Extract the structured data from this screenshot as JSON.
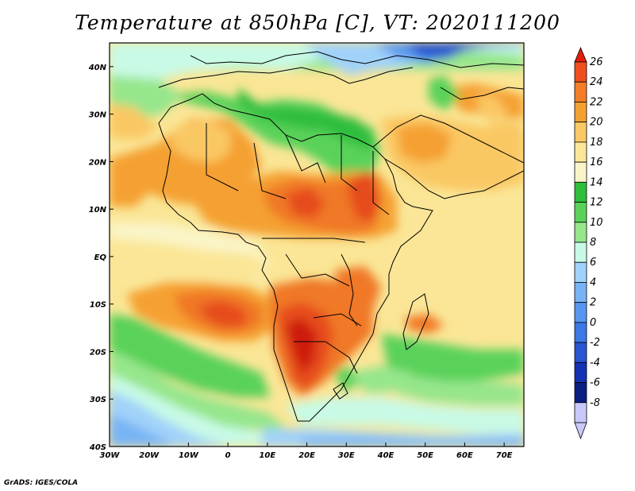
{
  "title": "Temperature at 850hPa [C], VT: 2020111200",
  "credit": "GrADS: IGES/COLA",
  "map": {
    "projection": "lat-lon",
    "lon_range": [
      -30,
      75
    ],
    "lat_range": [
      -40,
      45
    ],
    "lon_ticks": [
      "30W",
      "20W",
      "10W",
      "0",
      "10E",
      "20E",
      "30E",
      "40E",
      "50E",
      "60E",
      "70E"
    ],
    "lat_ticks": [
      "40N",
      "30N",
      "20N",
      "10N",
      "EQ",
      "10S",
      "20S",
      "30S",
      "40S"
    ],
    "variable": "Temperature at 850hPa",
    "units": "C",
    "valid_time": "2020111200"
  },
  "colorbar": {
    "levels": [
      "26",
      "24",
      "22",
      "20",
      "18",
      "16",
      "14",
      "12",
      "10",
      "8",
      "6",
      "4",
      "2",
      "0",
      "-2",
      "-4",
      "-6",
      "-8"
    ],
    "colors": [
      "#e01e0a",
      "#f0501e",
      "#f57d28",
      "#f5a032",
      "#fac864",
      "#fae696",
      "#faf5c8",
      "#2dbe3c",
      "#5ad25a",
      "#96e68c",
      "#c8fae6",
      "#a0d2fa",
      "#78b4f5",
      "#5596f0",
      "#3c78e6",
      "#2855d2",
      "#1432b4",
      "#0a1e82",
      "#c8c8fa"
    ]
  },
  "palette": {
    "deep_red": "#cd1e0a",
    "red": "#e64b1e",
    "orange_red": "#f07828",
    "orange": "#f5a032",
    "light_orange": "#fac864",
    "yellow": "#fae696",
    "pale_yellow": "#faf5c8",
    "green": "#2dbe3c",
    "mid_green": "#5ad25a",
    "light_green": "#96e68c",
    "mint": "#c8fae6",
    "light_blue": "#a0d2fa",
    "blue": "#78b4f5",
    "mid_blue": "#5596f0",
    "deep_blue": "#2855d2",
    "navy": "#1432b4"
  }
}
